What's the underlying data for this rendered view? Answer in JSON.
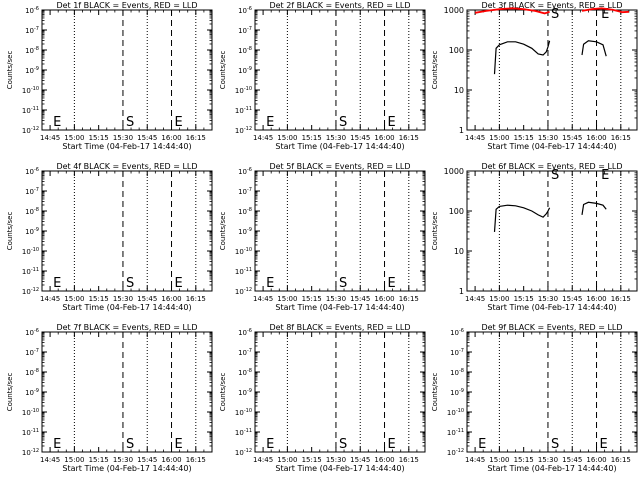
{
  "window": {
    "background": "#ffffff",
    "foreground": "#000000",
    "accent_red": "#ff0000"
  },
  "chart_data": [
    {
      "type": "line",
      "title": "Det 1f BLACK = Events, RED = LLD",
      "xlabel": "Start Time (04-Feb-17 14:44:40)",
      "ylabel": "Counts/sec",
      "x_tick_labels": [
        "14:45",
        "15:00",
        "15:15",
        "15:30",
        "15:45",
        "16:00",
        "16:15"
      ],
      "y_tick_labels": [
        "10^-6",
        "10^-7",
        "10^-8",
        "10^-9",
        "10^-10",
        "10^-11",
        "10^-12"
      ],
      "yscale": "log",
      "ylim": [
        "10^-12",
        "10^-6"
      ],
      "markers": [
        {
          "label": "E",
          "time": "14:45"
        },
        {
          "label": "S",
          "time": "15:30"
        },
        {
          "label": "E",
          "time": "16:00"
        }
      ],
      "series": []
    },
    {
      "type": "line",
      "title": "Det 2f BLACK = Events, RED = LLD",
      "xlabel": "Start Time (04-Feb-17 14:44:40)",
      "ylabel": "Counts/sec",
      "x_tick_labels": [
        "14:45",
        "15:00",
        "15:15",
        "15:30",
        "15:45",
        "16:00",
        "16:15"
      ],
      "y_tick_labels": [
        "10^-6",
        "10^-7",
        "10^-8",
        "10^-9",
        "10^-10",
        "10^-11",
        "10^-12"
      ],
      "yscale": "log",
      "ylim": [
        "10^-12",
        "10^-6"
      ],
      "markers": [
        {
          "label": "E",
          "time": "14:45"
        },
        {
          "label": "S",
          "time": "15:30"
        },
        {
          "label": "E",
          "time": "16:00"
        }
      ],
      "series": []
    },
    {
      "type": "line",
      "title": "Det 3f BLACK = Events, RED = LLD",
      "xlabel": "Start Time (04-Feb-17 14:44:40)",
      "ylabel": "Counts/sec",
      "x_tick_labels": [
        "14:45",
        "15:00",
        "15:15",
        "15:30",
        "15:45",
        "16:00",
        "16:15"
      ],
      "y_tick_labels": [
        "1000",
        "100",
        "10",
        "1"
      ],
      "yscale": "log",
      "ylim": [
        1,
        1000
      ],
      "markers": [
        {
          "label": "S",
          "time": "15:30"
        },
        {
          "label": "E",
          "time": "16:01"
        }
      ],
      "series": [
        {
          "color": "#000000",
          "segments": [
            {
              "x": [
                "14:57",
                "14:58",
                "15:00",
                "15:05",
                "15:10",
                "15:15",
                "15:20",
                "15:24",
                "15:27",
                "15:29",
                "15:30",
                "15:31"
              ],
              "y": [
                25,
                110,
                135,
                160,
                160,
                140,
                110,
                80,
                75,
                90,
                120,
                170
              ]
            },
            {
              "x": [
                "15:51",
                "15:52",
                "15:55",
                "16:00",
                "16:04",
                "16:06"
              ],
              "y": [
                75,
                140,
                170,
                160,
                135,
                70
              ]
            }
          ]
        },
        {
          "color": "#ff0000",
          "segments": [
            {
              "x": [
                "14:45",
                "14:52",
                "15:00",
                "15:08",
                "15:15",
                "15:22",
                "15:28",
                "15:31"
              ],
              "y": [
                850,
                950,
                1050,
                1100,
                1050,
                950,
                820,
                900
              ]
            },
            {
              "x": [
                "15:51",
                "15:57",
                "16:03",
                "16:10",
                "16:16",
                "16:20"
              ],
              "y": [
                950,
                1050,
                1100,
                1020,
                880,
                900
              ]
            }
          ]
        }
      ]
    },
    {
      "type": "line",
      "title": "Det 4f BLACK = Events, RED = LLD",
      "xlabel": "Start Time (04-Feb-17 14:44:40)",
      "ylabel": "Counts/sec",
      "x_tick_labels": [
        "14:45",
        "15:00",
        "15:15",
        "15:30",
        "15:45",
        "16:00",
        "16:15"
      ],
      "y_tick_labels": [
        "10^-6",
        "10^-7",
        "10^-8",
        "10^-9",
        "10^-10",
        "10^-11",
        "10^-12"
      ],
      "yscale": "log",
      "ylim": [
        "10^-12",
        "10^-6"
      ],
      "markers": [
        {
          "label": "E",
          "time": "14:45"
        },
        {
          "label": "S",
          "time": "15:30"
        },
        {
          "label": "E",
          "time": "16:00"
        }
      ],
      "series": []
    },
    {
      "type": "line",
      "title": "Det 5f BLACK = Events, RED = LLD",
      "xlabel": "Start Time (04-Feb-17 14:44:40)",
      "ylabel": "Counts/sec",
      "x_tick_labels": [
        "14:45",
        "15:00",
        "15:15",
        "15:30",
        "15:45",
        "16:00",
        "16:15"
      ],
      "y_tick_labels": [
        "10^-6",
        "10^-7",
        "10^-8",
        "10^-9",
        "10^-10",
        "10^-11",
        "10^-12"
      ],
      "yscale": "log",
      "ylim": [
        "10^-12",
        "10^-6"
      ],
      "markers": [
        {
          "label": "E",
          "time": "14:45"
        },
        {
          "label": "S",
          "time": "15:30"
        },
        {
          "label": "E",
          "time": "16:00"
        }
      ],
      "series": []
    },
    {
      "type": "line",
      "title": "Det 6f BLACK = Events, RED = LLD",
      "xlabel": "Start Time (04-Feb-17 14:44:40)",
      "ylabel": "Counts/sec",
      "x_tick_labels": [
        "14:45",
        "15:00",
        "15:15",
        "15:30",
        "15:45",
        "16:00",
        "16:15"
      ],
      "y_tick_labels": [
        "1000",
        "100",
        "10",
        "1"
      ],
      "yscale": "log",
      "ylim": [
        1,
        1000
      ],
      "markers": [
        {
          "label": "S",
          "time": "15:30"
        },
        {
          "label": "E",
          "time": "16:01"
        }
      ],
      "series": [
        {
          "color": "#000000",
          "segments": [
            {
              "x": [
                "14:57",
                "14:58",
                "15:00",
                "15:05",
                "15:10",
                "15:15",
                "15:20",
                "15:24",
                "15:27",
                "15:29",
                "15:30",
                "15:31"
              ],
              "y": [
                30,
                110,
                130,
                140,
                135,
                120,
                100,
                80,
                70,
                85,
                100,
                120
              ]
            },
            {
              "x": [
                "15:51",
                "15:52",
                "15:55",
                "16:00",
                "16:04",
                "16:06"
              ],
              "y": [
                80,
                145,
                165,
                155,
                140,
                110
              ]
            }
          ]
        }
      ]
    },
    {
      "type": "line",
      "title": "Det 7f BLACK = Events, RED = LLD",
      "xlabel": "Start Time (04-Feb-17 14:44:40)",
      "ylabel": "Counts/sec",
      "x_tick_labels": [
        "14:45",
        "15:00",
        "15:15",
        "15:30",
        "15:45",
        "16:00",
        "16:15"
      ],
      "y_tick_labels": [
        "10^-6",
        "10^-7",
        "10^-8",
        "10^-9",
        "10^-10",
        "10^-11",
        "10^-12"
      ],
      "yscale": "log",
      "ylim": [
        "10^-12",
        "10^-6"
      ],
      "markers": [
        {
          "label": "E",
          "time": "14:45"
        },
        {
          "label": "S",
          "time": "15:30"
        },
        {
          "label": "E",
          "time": "16:00"
        }
      ],
      "series": []
    },
    {
      "type": "line",
      "title": "Det 8f BLACK = Events, RED = LLD",
      "xlabel": "Start Time (04-Feb-17 14:44:40)",
      "ylabel": "Counts/sec",
      "x_tick_labels": [
        "14:45",
        "15:00",
        "15:15",
        "15:30",
        "15:45",
        "16:00",
        "16:15"
      ],
      "y_tick_labels": [
        "10^-6",
        "10^-7",
        "10^-8",
        "10^-9",
        "10^-10",
        "10^-11",
        "10^-12"
      ],
      "yscale": "log",
      "ylim": [
        "10^-12",
        "10^-6"
      ],
      "markers": [
        {
          "label": "E",
          "time": "14:45"
        },
        {
          "label": "S",
          "time": "15:30"
        },
        {
          "label": "E",
          "time": "16:00"
        }
      ],
      "series": []
    },
    {
      "type": "line",
      "title": "Det 9f BLACK = Events, RED = LLD",
      "xlabel": "Start Time (04-Feb-17 14:44:40)",
      "ylabel": "Counts/sec",
      "x_tick_labels": [
        "14:45",
        "15:00",
        "15:15",
        "15:30",
        "15:45",
        "16:00",
        "16:15"
      ],
      "y_tick_labels": [
        "10^-6",
        "10^-7",
        "10^-8",
        "10^-9",
        "10^-10",
        "10^-11",
        "10^-12"
      ],
      "yscale": "log",
      "ylim": [
        "10^-12",
        "10^-6"
      ],
      "markers": [
        {
          "label": "E",
          "time": "14:45"
        },
        {
          "label": "S",
          "time": "15:30"
        },
        {
          "label": "E",
          "time": "16:00"
        }
      ],
      "series": []
    }
  ]
}
